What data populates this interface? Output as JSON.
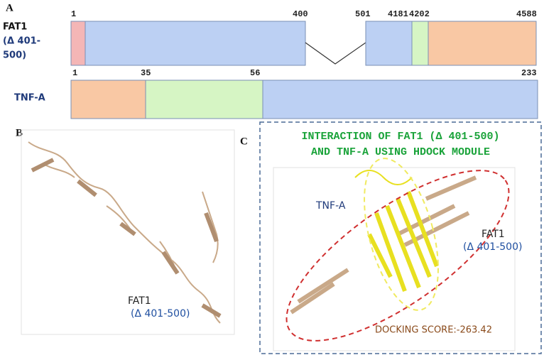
{
  "panel_a": {
    "label": "A",
    "fat1": {
      "name_lines": [
        "FAT1",
        "(Δ 401-",
        "500)"
      ],
      "positions": [
        "1",
        "400",
        "501",
        "4181",
        "4202",
        "4588"
      ]
    },
    "tnf": {
      "name": "TNF-A",
      "positions": [
        "1",
        "35",
        "56",
        "233"
      ]
    }
  },
  "panel_b": {
    "label": "B",
    "caption_lines": [
      "FAT1",
      "(Δ 401-500)"
    ]
  },
  "panel_c": {
    "label": "C",
    "title_lines": [
      "INTERACTION OF FAT1 (Δ 401-500)",
      "AND TNF-A USING HDOCK MODULE"
    ],
    "tnf_label": "TNF-A",
    "fat1_lines": [
      "FAT1",
      "(Δ 401-500)"
    ],
    "docking_score": "DOCKING SCORE:-263.42"
  }
}
